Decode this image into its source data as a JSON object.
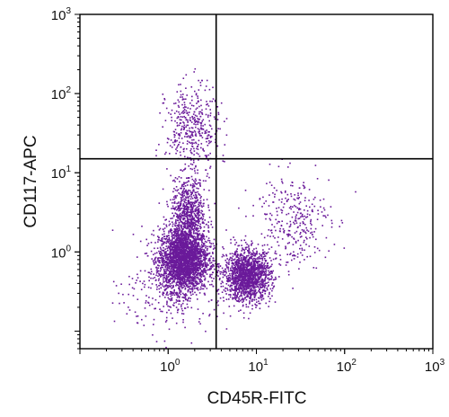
{
  "chart_data": {
    "type": "scatter",
    "xlabel": "CD45R-FITC",
    "ylabel": "CD117-APC",
    "x_scale": "log",
    "y_scale": "log",
    "xlim": [
      0.1,
      1000
    ],
    "ylim": [
      0.06,
      1000
    ],
    "x_ticks": [
      {
        "base": "10",
        "exp": "0",
        "value": 1
      },
      {
        "base": "10",
        "exp": "1",
        "value": 10
      },
      {
        "base": "10",
        "exp": "2",
        "value": 100
      },
      {
        "base": "10",
        "exp": "3",
        "value": 1000
      }
    ],
    "y_ticks": [
      {
        "base": "10",
        "exp": "0",
        "value": 1
      },
      {
        "base": "10",
        "exp": "1",
        "value": 10
      },
      {
        "base": "10",
        "exp": "2",
        "value": 100
      },
      {
        "base": "10",
        "exp": "3",
        "value": 1000
      }
    ],
    "quadrant_gate": {
      "x": 3.5,
      "y": 15
    },
    "grid": false,
    "legend": "none",
    "colors": {
      "points": "#6a1a9a",
      "axes": "#000000",
      "gate_lines": "#000000"
    },
    "populations": [
      {
        "center": [
          1.5,
          0.8
        ],
        "spread": [
          0.14,
          0.2
        ],
        "count": 2600
      },
      {
        "center": [
          1.7,
          3.0
        ],
        "spread": [
          0.1,
          0.22
        ],
        "count": 700
      },
      {
        "center": [
          1.9,
          35
        ],
        "spread": [
          0.15,
          0.28
        ],
        "count": 420
      },
      {
        "center": [
          8.0,
          0.5
        ],
        "spread": [
          0.13,
          0.16
        ],
        "count": 1500
      },
      {
        "center": [
          25,
          2.5
        ],
        "spread": [
          0.22,
          0.3
        ],
        "count": 320
      },
      {
        "center": [
          1.2,
          0.3
        ],
        "spread": [
          0.3,
          0.25
        ],
        "count": 250
      }
    ]
  }
}
